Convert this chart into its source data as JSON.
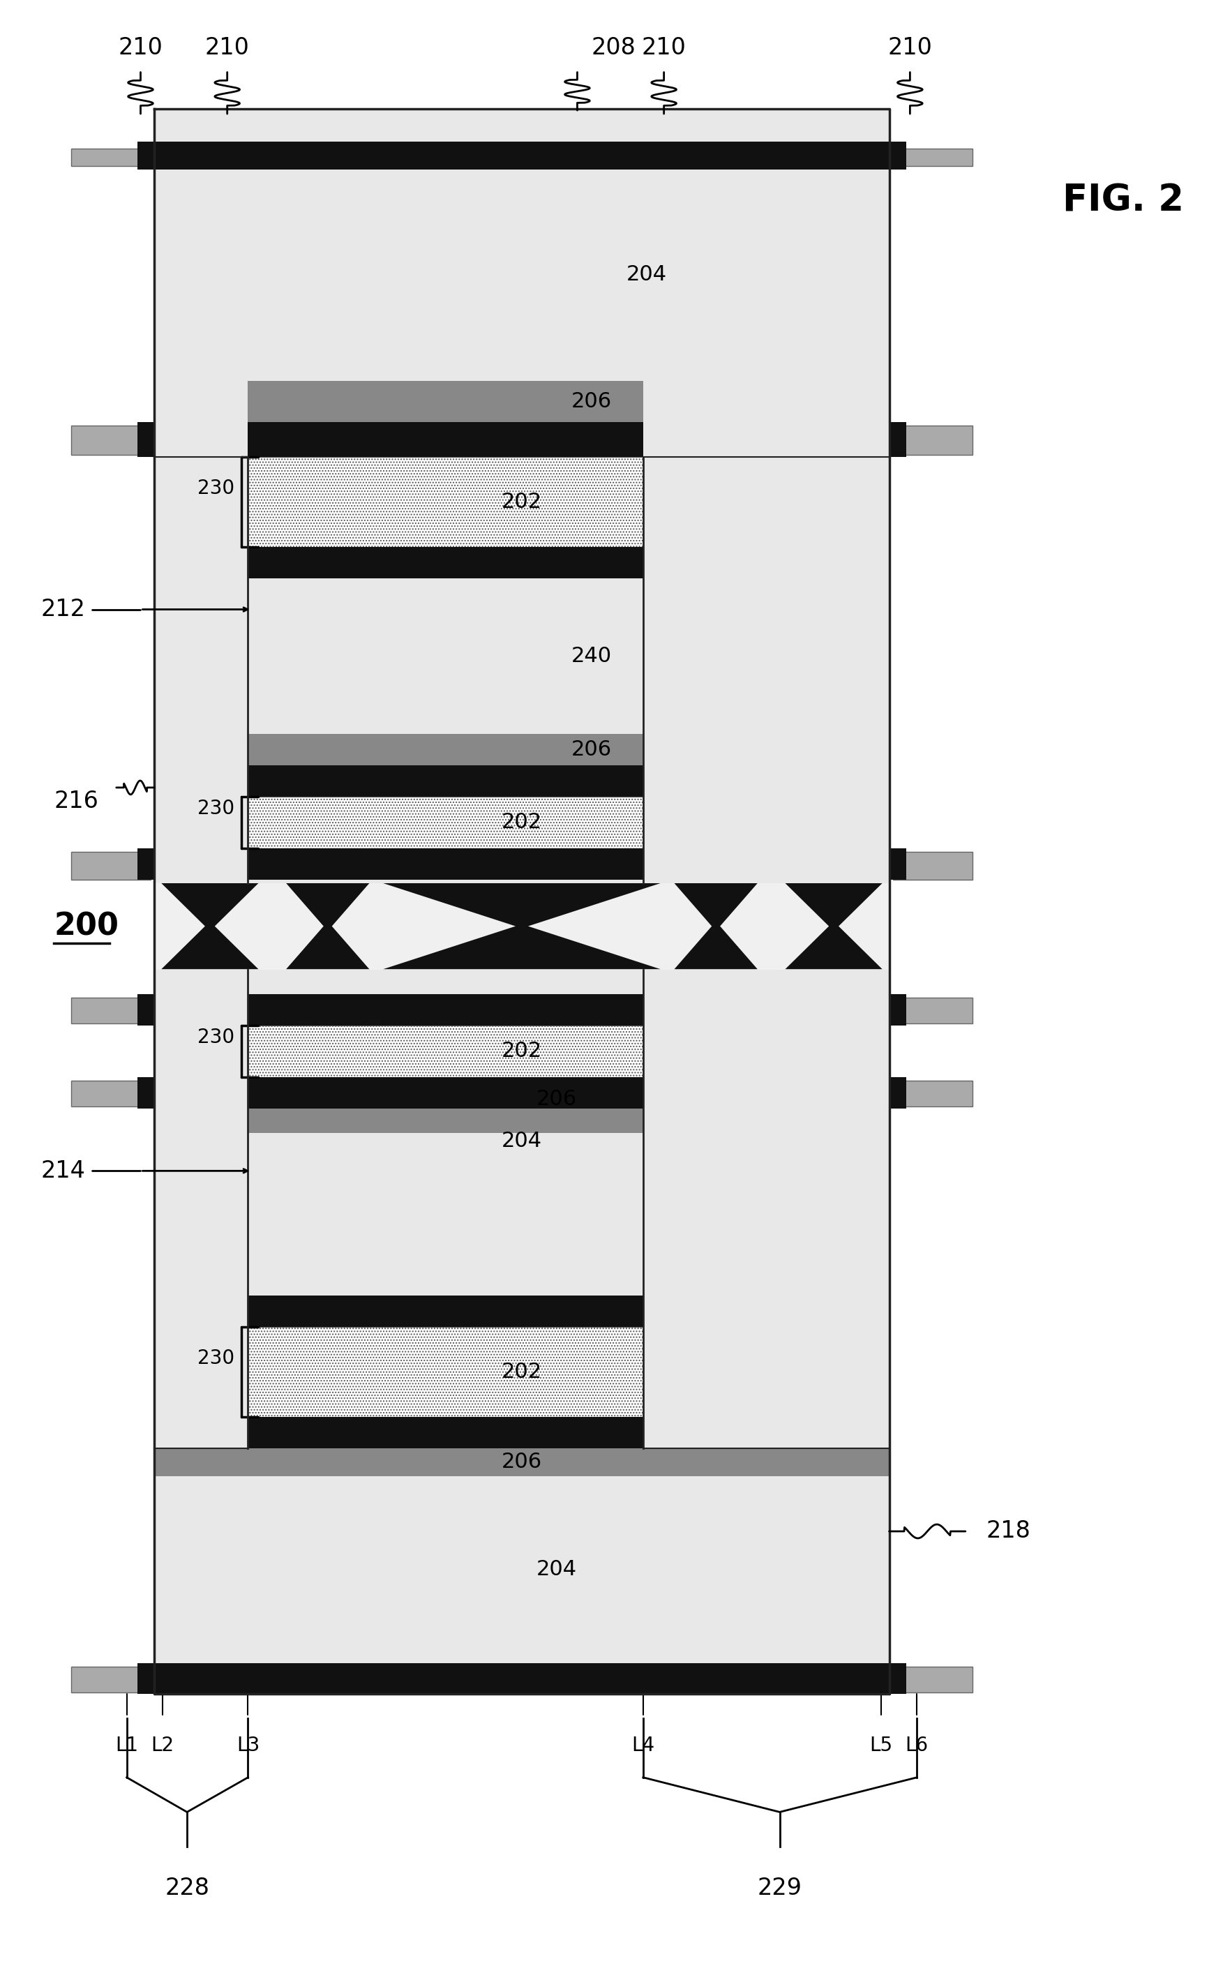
{
  "fig_label": "FIG. 2",
  "ref_200": "200",
  "ref_202": "202",
  "ref_204": "204",
  "ref_206": "206",
  "ref_208": "208",
  "ref_210": "210",
  "ref_212": "212",
  "ref_214": "214",
  "ref_216": "216",
  "ref_218": "218",
  "ref_228": "228",
  "ref_229": "229",
  "ref_230": "230",
  "ref_240": "240",
  "layer_labels": [
    "L1",
    "L2",
    "L3",
    "L4",
    "L5",
    "L6"
  ],
  "bg_color": "#ffffff"
}
